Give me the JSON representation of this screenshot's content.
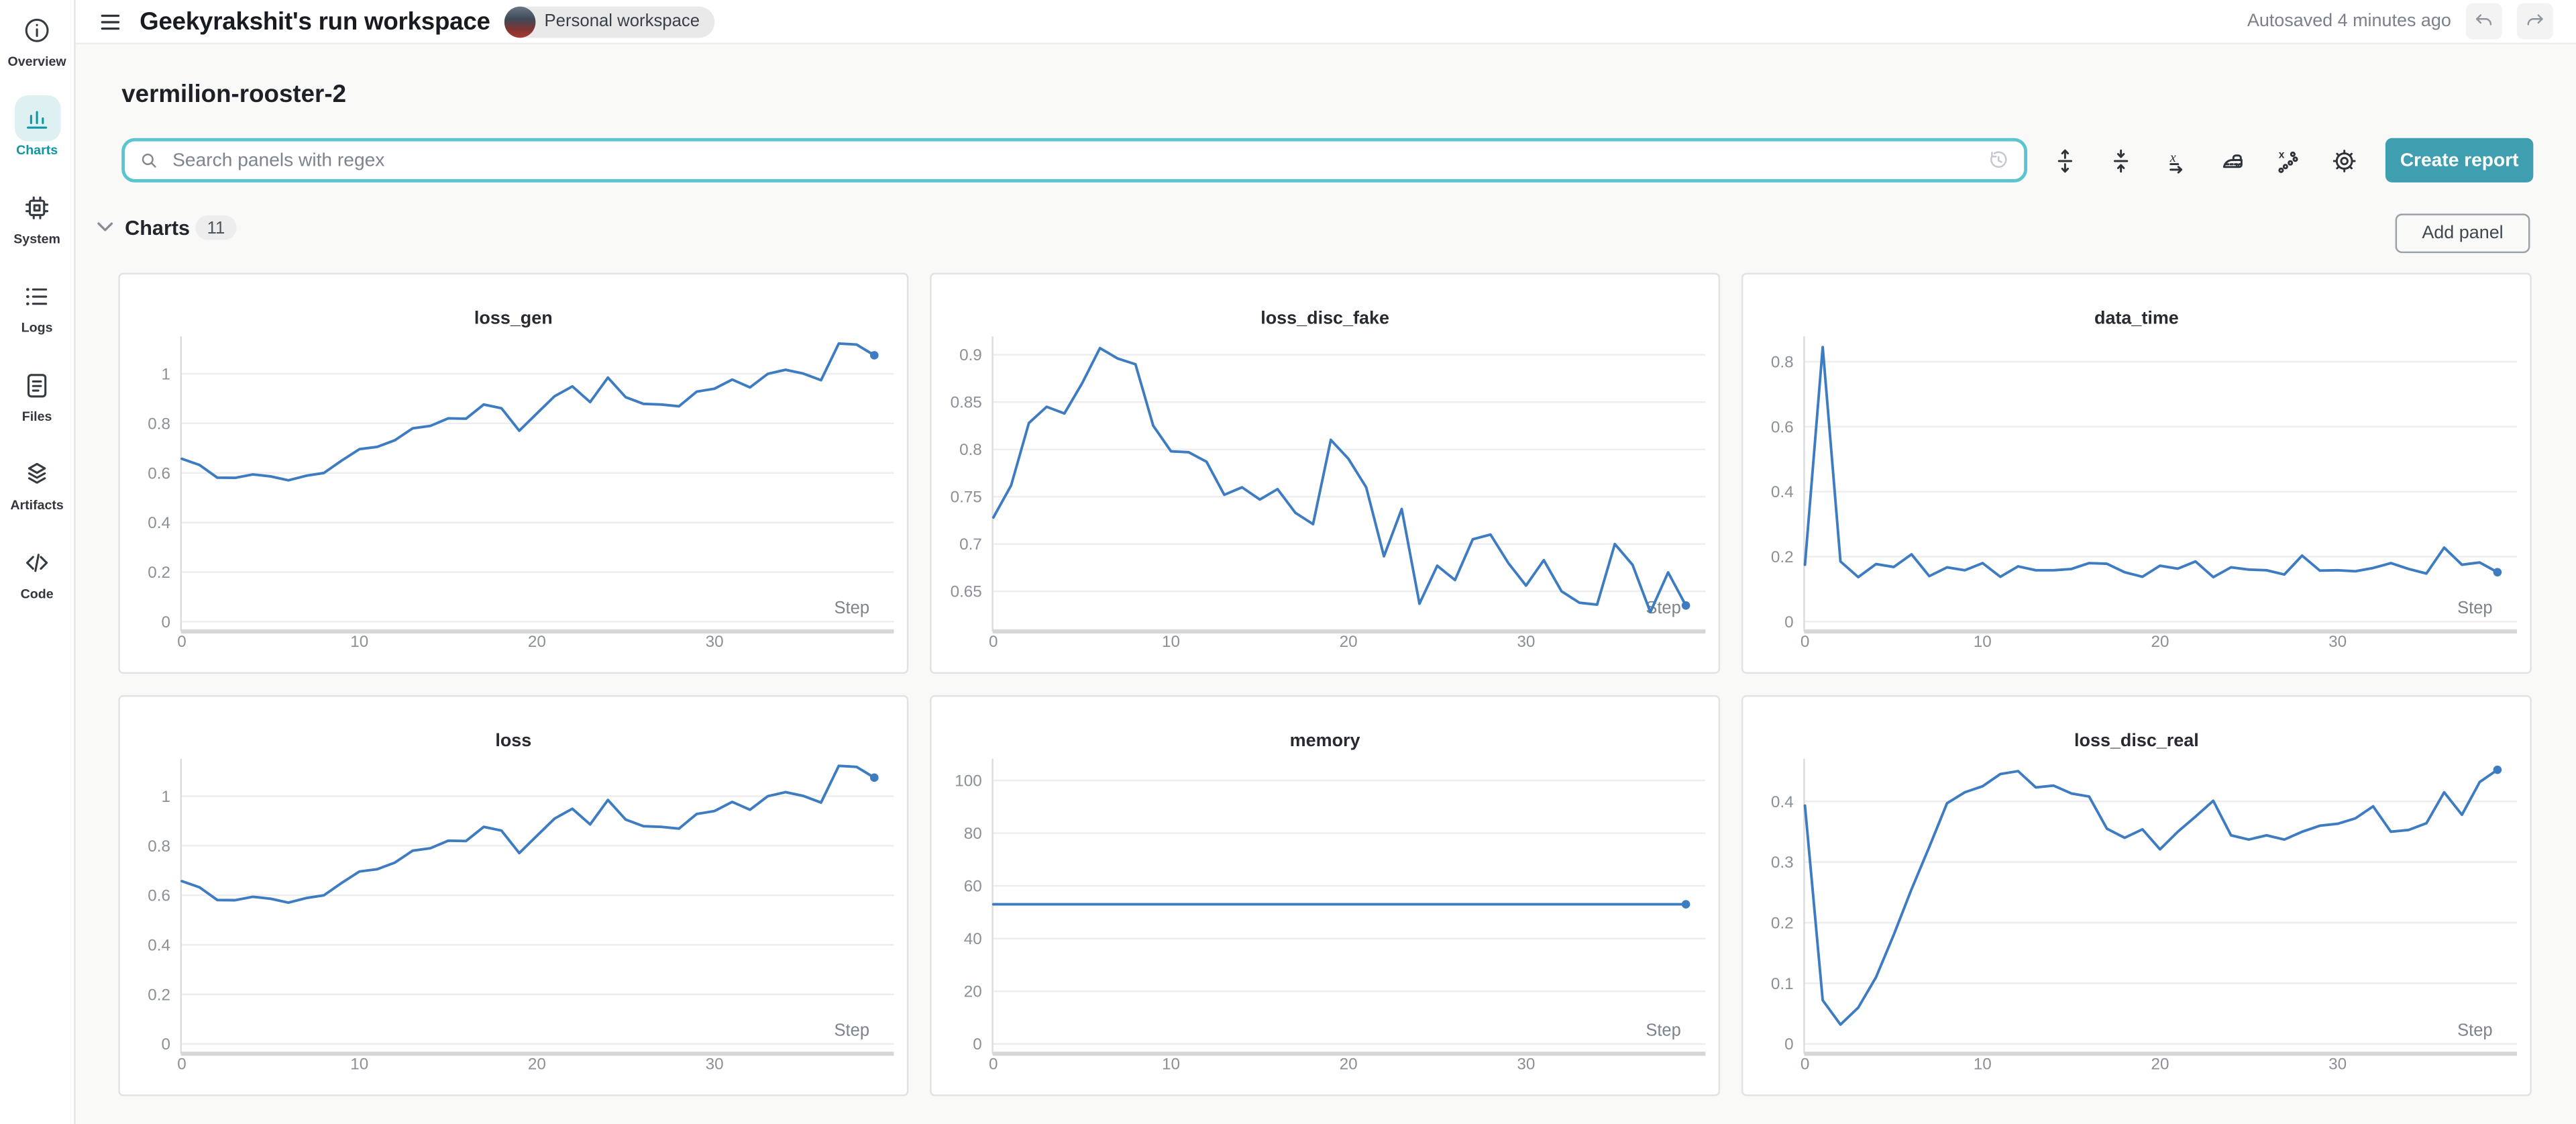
{
  "header": {
    "title": "Geekyrakshit's run workspace",
    "badge": "Personal workspace",
    "autosaved": "Autosaved 4 minutes ago",
    "icons": [
      "menu-icon",
      "undo-icon",
      "redo-icon"
    ]
  },
  "sidebar": {
    "items": [
      {
        "label": "Overview",
        "icon": "info-icon",
        "active": false
      },
      {
        "label": "Charts",
        "icon": "charts-icon",
        "active": true
      },
      {
        "label": "System",
        "icon": "chip-icon",
        "active": false
      },
      {
        "label": "Logs",
        "icon": "logs-icon",
        "active": false
      },
      {
        "label": "Files",
        "icon": "files-icon",
        "active": false
      },
      {
        "label": "Artifacts",
        "icon": "artifacts-icon",
        "active": false
      },
      {
        "label": "Code",
        "icon": "code-icon",
        "active": false
      }
    ]
  },
  "run": {
    "name": "vermilion-rooster-2"
  },
  "search": {
    "placeholder": "Search panels with regex",
    "icons": [
      "search-icon",
      "history-icon"
    ]
  },
  "toolbar": {
    "create_report": "Create report",
    "icons": [
      "expand-panels-icon",
      "collapse-panels-icon",
      "x-axis-settings-icon",
      "smoothing-icon",
      "outliers-icon",
      "settings-gear-icon"
    ]
  },
  "section": {
    "title": "Charts",
    "count": "11",
    "add_panel": "Add panel",
    "icon": "chevron-down-icon"
  },
  "colors": {
    "accent_teal": "#3f9fb1",
    "search_border": "#5ac5cf",
    "sidebar_active_teal": "#0f97a7",
    "chart_line_blue": "#3e7cc1"
  },
  "chart_data": [
    {
      "type": "line",
      "title": "loss_gen",
      "x_label": "Step",
      "x_ticks": [
        0,
        10,
        20,
        30
      ],
      "x_step_interval": 1,
      "y_ticks": [
        0,
        0.2,
        0.4,
        0.6,
        0.8,
        1
      ],
      "ylim": [
        0,
        1.138
      ],
      "line_color": "#3e7cc1",
      "grid": true,
      "legend": false,
      "values": [
        0.657,
        0.632,
        0.581,
        0.58,
        0.594,
        0.586,
        0.57,
        0.589,
        0.6,
        0.65,
        0.696,
        0.705,
        0.732,
        0.78,
        0.79,
        0.82,
        0.819,
        0.876,
        0.861,
        0.77,
        0.84,
        0.91,
        0.949,
        0.886,
        0.985,
        0.906,
        0.879,
        0.876,
        0.869,
        0.928,
        0.94,
        0.977,
        0.945,
        1.0,
        1.016,
        1.001,
        0.974,
        1.122,
        1.118,
        1.075
      ]
    },
    {
      "type": "line",
      "title": "loss_disc_fake",
      "x_label": "Step",
      "x_ticks": [
        0,
        10,
        20,
        30
      ],
      "x_step_interval": 1,
      "y_ticks": [
        0.65,
        0.7,
        0.75,
        0.8,
        0.85,
        0.9
      ],
      "ylim": [
        0.618,
        0.916
      ],
      "line_color": "#3e7cc1",
      "grid": true,
      "legend": false,
      "values": [
        0.728,
        0.762,
        0.828,
        0.845,
        0.838,
        0.87,
        0.907,
        0.896,
        0.89,
        0.825,
        0.798,
        0.797,
        0.787,
        0.752,
        0.76,
        0.747,
        0.758,
        0.733,
        0.721,
        0.81,
        0.79,
        0.76,
        0.687,
        0.737,
        0.637,
        0.677,
        0.662,
        0.705,
        0.71,
        0.68,
        0.656,
        0.683,
        0.65,
        0.638,
        0.636,
        0.7,
        0.678,
        0.628,
        0.67,
        0.635
      ]
    },
    {
      "type": "line",
      "title": "data_time",
      "x_label": "Step",
      "x_ticks": [
        0,
        10,
        20,
        30
      ],
      "x_step_interval": 1,
      "y_ticks": [
        0,
        0.2,
        0.4,
        0.6,
        0.8
      ],
      "ylim": [
        0,
        0.868
      ],
      "line_color": "#3e7cc1",
      "grid": true,
      "legend": false,
      "values": [
        0.175,
        0.845,
        0.185,
        0.137,
        0.177,
        0.168,
        0.207,
        0.14,
        0.167,
        0.158,
        0.18,
        0.138,
        0.17,
        0.158,
        0.158,
        0.162,
        0.18,
        0.178,
        0.152,
        0.138,
        0.172,
        0.163,
        0.185,
        0.137,
        0.167,
        0.16,
        0.158,
        0.145,
        0.203,
        0.157,
        0.158,
        0.155,
        0.165,
        0.18,
        0.162,
        0.148,
        0.228,
        0.175,
        0.182,
        0.152
      ]
    },
    {
      "type": "line",
      "title": "loss",
      "x_label": "Step",
      "x_ticks": [
        0,
        10,
        20,
        30
      ],
      "x_step_interval": 1,
      "y_ticks": [
        0,
        0.2,
        0.4,
        0.6,
        0.8,
        1
      ],
      "ylim": [
        0,
        1.138
      ],
      "line_color": "#3e7cc1",
      "grid": true,
      "legend": false,
      "values": [
        0.657,
        0.632,
        0.581,
        0.58,
        0.594,
        0.586,
        0.57,
        0.589,
        0.6,
        0.65,
        0.696,
        0.705,
        0.732,
        0.78,
        0.79,
        0.82,
        0.819,
        0.876,
        0.861,
        0.77,
        0.84,
        0.91,
        0.949,
        0.886,
        0.985,
        0.906,
        0.879,
        0.876,
        0.869,
        0.928,
        0.94,
        0.977,
        0.945,
        1.0,
        1.016,
        1.001,
        0.974,
        1.122,
        1.118,
        1.075
      ]
    },
    {
      "type": "line",
      "title": "memory",
      "x_label": "Step",
      "x_ticks": [
        0,
        10,
        20,
        30
      ],
      "x_step_interval": 1,
      "y_ticks": [
        0,
        20,
        40,
        60,
        80,
        100
      ],
      "ylim": [
        0,
        107
      ],
      "line_color": "#3e7cc1",
      "grid": true,
      "legend": false,
      "values": [
        53,
        53,
        53,
        53,
        53,
        53,
        53,
        53,
        53,
        53,
        53,
        53,
        53,
        53,
        53,
        53,
        53,
        53,
        53,
        53,
        53,
        53,
        53,
        53,
        53,
        53,
        53,
        53,
        53,
        53,
        53,
        53,
        53,
        53,
        53,
        53,
        53,
        53,
        53,
        53
      ]
    },
    {
      "type": "line",
      "title": "loss_disc_real",
      "x_label": "Step",
      "x_ticks": [
        0,
        10,
        20,
        30
      ],
      "x_step_interval": 1,
      "y_ticks": [
        0,
        0.1,
        0.2,
        0.3,
        0.4
      ],
      "ylim": [
        0,
        0.465
      ],
      "line_color": "#3e7cc1",
      "grid": true,
      "legend": false,
      "values": [
        0.393,
        0.072,
        0.032,
        0.06,
        0.11,
        0.18,
        0.255,
        0.325,
        0.397,
        0.415,
        0.425,
        0.445,
        0.45,
        0.423,
        0.426,
        0.413,
        0.408,
        0.355,
        0.34,
        0.354,
        0.321,
        0.35,
        0.375,
        0.401,
        0.344,
        0.337,
        0.344,
        0.337,
        0.35,
        0.36,
        0.363,
        0.372,
        0.392,
        0.35,
        0.353,
        0.364,
        0.415,
        0.378,
        0.432,
        0.452
      ]
    }
  ]
}
